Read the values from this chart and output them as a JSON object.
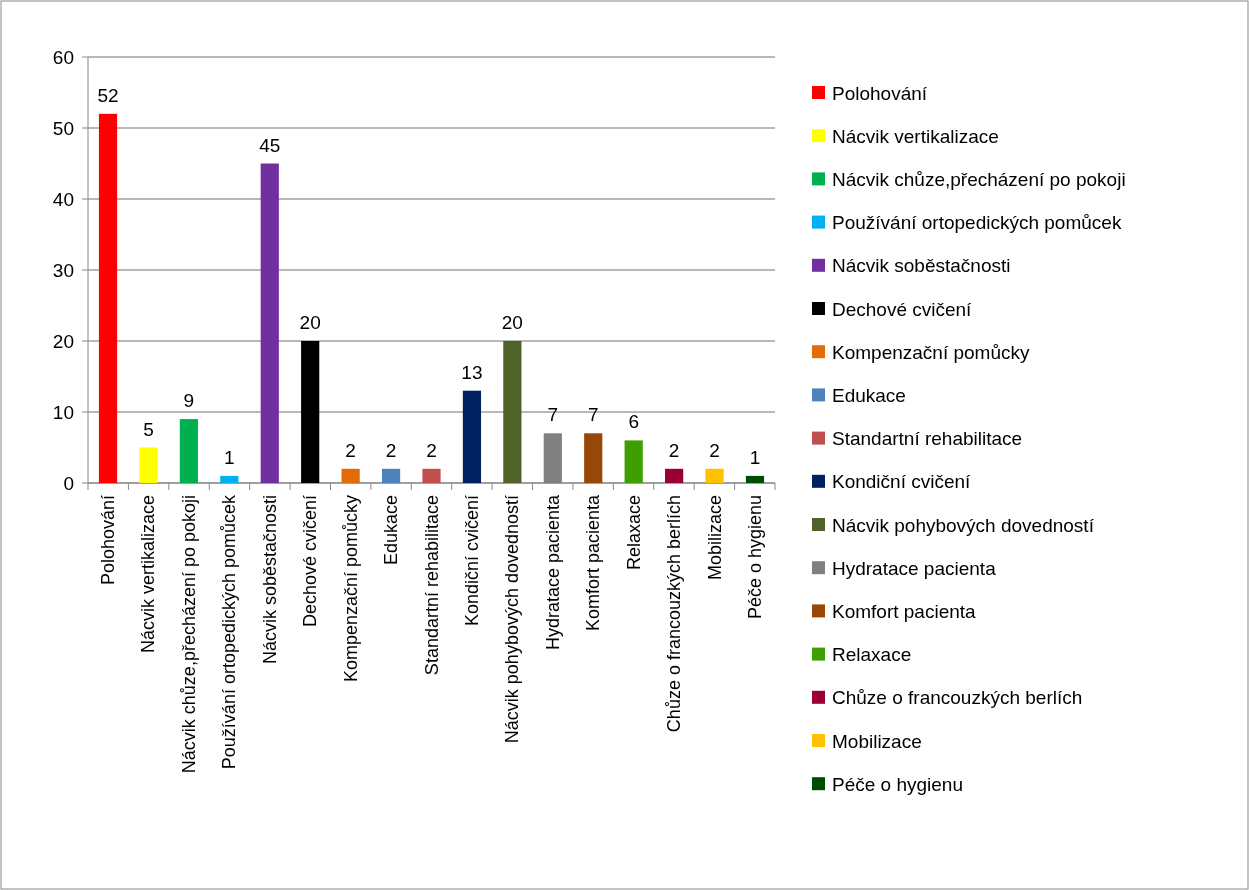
{
  "chart_data": {
    "type": "bar",
    "categories": [
      "Polohování",
      "Nácvik vertikalizace",
      "Nácvik chůze,přecházení po pokoji",
      "Používání ortopedických pomůcek",
      "Nácvik soběstačnosti",
      "Dechové cvičení",
      "Kompenzační pomůcky",
      "Edukace",
      "Standartní rehabilitace",
      "Kondiční cvičení",
      "Nácvik pohybových dovedností",
      "Hydratace pacienta",
      "Komfort pacienta",
      "Relaxace",
      "Chůze o francouzkých berlích",
      "Mobilizace",
      "Péče o hygienu"
    ],
    "series": [
      {
        "name": "Polohování",
        "color": "#ff0000",
        "values": [
          52,
          null,
          null,
          null,
          null,
          null,
          null,
          null,
          null,
          null,
          null,
          null,
          null,
          null,
          null,
          null,
          null
        ]
      },
      {
        "name": "Nácvik vertikalizace",
        "color": "#ffff00",
        "values": [
          null,
          5,
          null,
          null,
          null,
          null,
          null,
          null,
          null,
          null,
          null,
          null,
          null,
          null,
          null,
          null,
          null
        ]
      },
      {
        "name": "Nácvik chůze,přecházení po pokoji",
        "color": "#00b050",
        "values": [
          null,
          null,
          9,
          null,
          null,
          null,
          null,
          null,
          null,
          null,
          null,
          null,
          null,
          null,
          null,
          null,
          null
        ]
      },
      {
        "name": "Používání ortopedických pomůcek",
        "color": "#00b0f0",
        "values": [
          null,
          null,
          null,
          1,
          null,
          null,
          null,
          null,
          null,
          null,
          null,
          null,
          null,
          null,
          null,
          null,
          null
        ]
      },
      {
        "name": "Nácvik soběstačnosti",
        "color": "#7030a0",
        "values": [
          null,
          null,
          null,
          null,
          45,
          null,
          null,
          null,
          null,
          null,
          null,
          null,
          null,
          null,
          null,
          null,
          null
        ]
      },
      {
        "name": "Dechové cvičení",
        "color": "#000000",
        "values": [
          null,
          null,
          null,
          null,
          null,
          20,
          null,
          null,
          null,
          null,
          null,
          null,
          null,
          null,
          null,
          null,
          null
        ]
      },
      {
        "name": "Kompenzační pomůcky",
        "color": "#e36c09",
        "values": [
          null,
          null,
          null,
          null,
          null,
          null,
          2,
          null,
          null,
          null,
          null,
          null,
          null,
          null,
          null,
          null,
          null
        ]
      },
      {
        "name": "Edukace",
        "color": "#4f81bd",
        "values": [
          null,
          null,
          null,
          null,
          null,
          null,
          null,
          2,
          null,
          null,
          null,
          null,
          null,
          null,
          null,
          null,
          null
        ]
      },
      {
        "name": "Standartní rehabilitace",
        "color": "#c0504d",
        "values": [
          null,
          null,
          null,
          null,
          null,
          null,
          null,
          null,
          2,
          null,
          null,
          null,
          null,
          null,
          null,
          null,
          null
        ]
      },
      {
        "name": "Kondiční cvičení",
        "color": "#002060",
        "values": [
          null,
          null,
          null,
          null,
          null,
          null,
          null,
          null,
          null,
          13,
          null,
          null,
          null,
          null,
          null,
          null,
          null
        ]
      },
      {
        "name": "Nácvik pohybových dovedností",
        "color": "#4f6228",
        "values": [
          null,
          null,
          null,
          null,
          null,
          null,
          null,
          null,
          null,
          null,
          20,
          null,
          null,
          null,
          null,
          null,
          null
        ]
      },
      {
        "name": "Hydratace pacienta",
        "color": "#808080",
        "values": [
          null,
          null,
          null,
          null,
          null,
          null,
          null,
          null,
          null,
          null,
          null,
          7,
          null,
          null,
          null,
          null,
          null
        ]
      },
      {
        "name": "Komfort pacienta",
        "color": "#974806",
        "values": [
          null,
          null,
          null,
          null,
          null,
          null,
          null,
          null,
          null,
          null,
          null,
          null,
          7,
          null,
          null,
          null,
          null
        ]
      },
      {
        "name": "Relaxace",
        "color": "#3f9f00",
        "values": [
          null,
          null,
          null,
          null,
          null,
          null,
          null,
          null,
          null,
          null,
          null,
          null,
          null,
          6,
          null,
          null,
          null
        ]
      },
      {
        "name": "Chůze o francouzkých berlích",
        "color": "#9b0034",
        "values": [
          null,
          null,
          null,
          null,
          null,
          null,
          null,
          null,
          null,
          null,
          null,
          null,
          null,
          null,
          2,
          null,
          null
        ]
      },
      {
        "name": "Mobilizace",
        "color": "#ffc000",
        "values": [
          null,
          null,
          null,
          null,
          null,
          null,
          null,
          null,
          null,
          null,
          null,
          null,
          null,
          null,
          null,
          2,
          null
        ]
      },
      {
        "name": "Péče o hygienu",
        "color": "#004d00",
        "values": [
          null,
          null,
          null,
          null,
          null,
          null,
          null,
          null,
          null,
          null,
          null,
          null,
          null,
          null,
          null,
          null,
          1
        ]
      }
    ],
    "ylim": [
      0,
      60
    ],
    "yticks": [
      0,
      10,
      20,
      30,
      40,
      50,
      60
    ],
    "grid": "y",
    "data_labels": true,
    "legend": "right"
  }
}
